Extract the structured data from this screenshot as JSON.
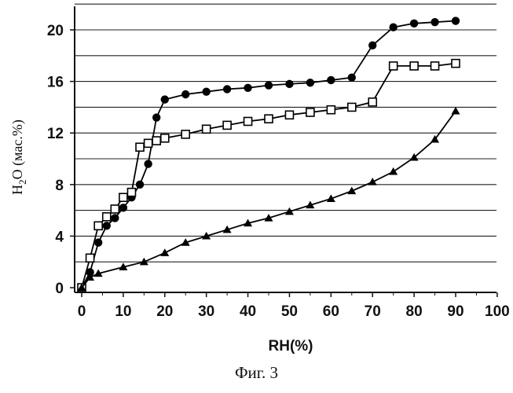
{
  "chart_data": {
    "type": "line",
    "xlabel": "RH(%)",
    "ylabel": "H",
    "ylabel_sub": "2",
    "ylabel_rest": "O (мас.%)",
    "caption": "Фиг. 3",
    "xlim": [
      0,
      100
    ],
    "ylim": [
      0,
      22
    ],
    "xticks": [
      "0",
      "10",
      "20",
      "30",
      "40",
      "50",
      "60",
      "70",
      "80",
      "90",
      "100"
    ],
    "yticks": [
      "0",
      "4",
      "8",
      "12",
      "16",
      "20"
    ],
    "grid": "horizontal",
    "legend": "none",
    "series": [
      {
        "marker": "filled-circle",
        "color": "#000000",
        "x": [
          0,
          2,
          4,
          6,
          8,
          10,
          12,
          14,
          16,
          18,
          20,
          25,
          30,
          35,
          40,
          45,
          50,
          55,
          60,
          65,
          70,
          75,
          80,
          85,
          90
        ],
        "y": [
          0,
          1.2,
          3.5,
          4.8,
          5.4,
          6.2,
          7.0,
          8.0,
          9.6,
          13.2,
          14.6,
          15.0,
          15.2,
          15.4,
          15.5,
          15.7,
          15.8,
          15.9,
          16.1,
          16.3,
          18.8,
          20.2,
          20.5,
          20.6,
          20.7
        ]
      },
      {
        "marker": "open-square",
        "color": "#000000",
        "x": [
          0,
          2,
          4,
          6,
          8,
          10,
          12,
          14,
          16,
          18,
          20,
          25,
          30,
          35,
          40,
          45,
          50,
          55,
          60,
          65,
          70,
          75,
          80,
          85,
          90
        ],
        "y": [
          0,
          2.3,
          4.8,
          5.5,
          6.1,
          7.0,
          7.4,
          10.9,
          11.2,
          11.4,
          11.6,
          11.9,
          12.3,
          12.6,
          12.9,
          13.1,
          13.4,
          13.6,
          13.8,
          14.0,
          14.4,
          17.2,
          17.2,
          17.2,
          17.4
        ]
      },
      {
        "marker": "filled-triangle",
        "color": "#000000",
        "x": [
          0,
          2,
          4,
          10,
          15,
          20,
          25,
          30,
          35,
          40,
          45,
          50,
          55,
          60,
          65,
          70,
          75,
          80,
          85,
          90
        ],
        "y": [
          0,
          0.8,
          1.1,
          1.6,
          2.0,
          2.7,
          3.5,
          4.0,
          4.5,
          5.0,
          5.4,
          5.9,
          6.4,
          6.9,
          7.5,
          8.2,
          9.0,
          10.1,
          11.5,
          13.7
        ]
      }
    ]
  }
}
